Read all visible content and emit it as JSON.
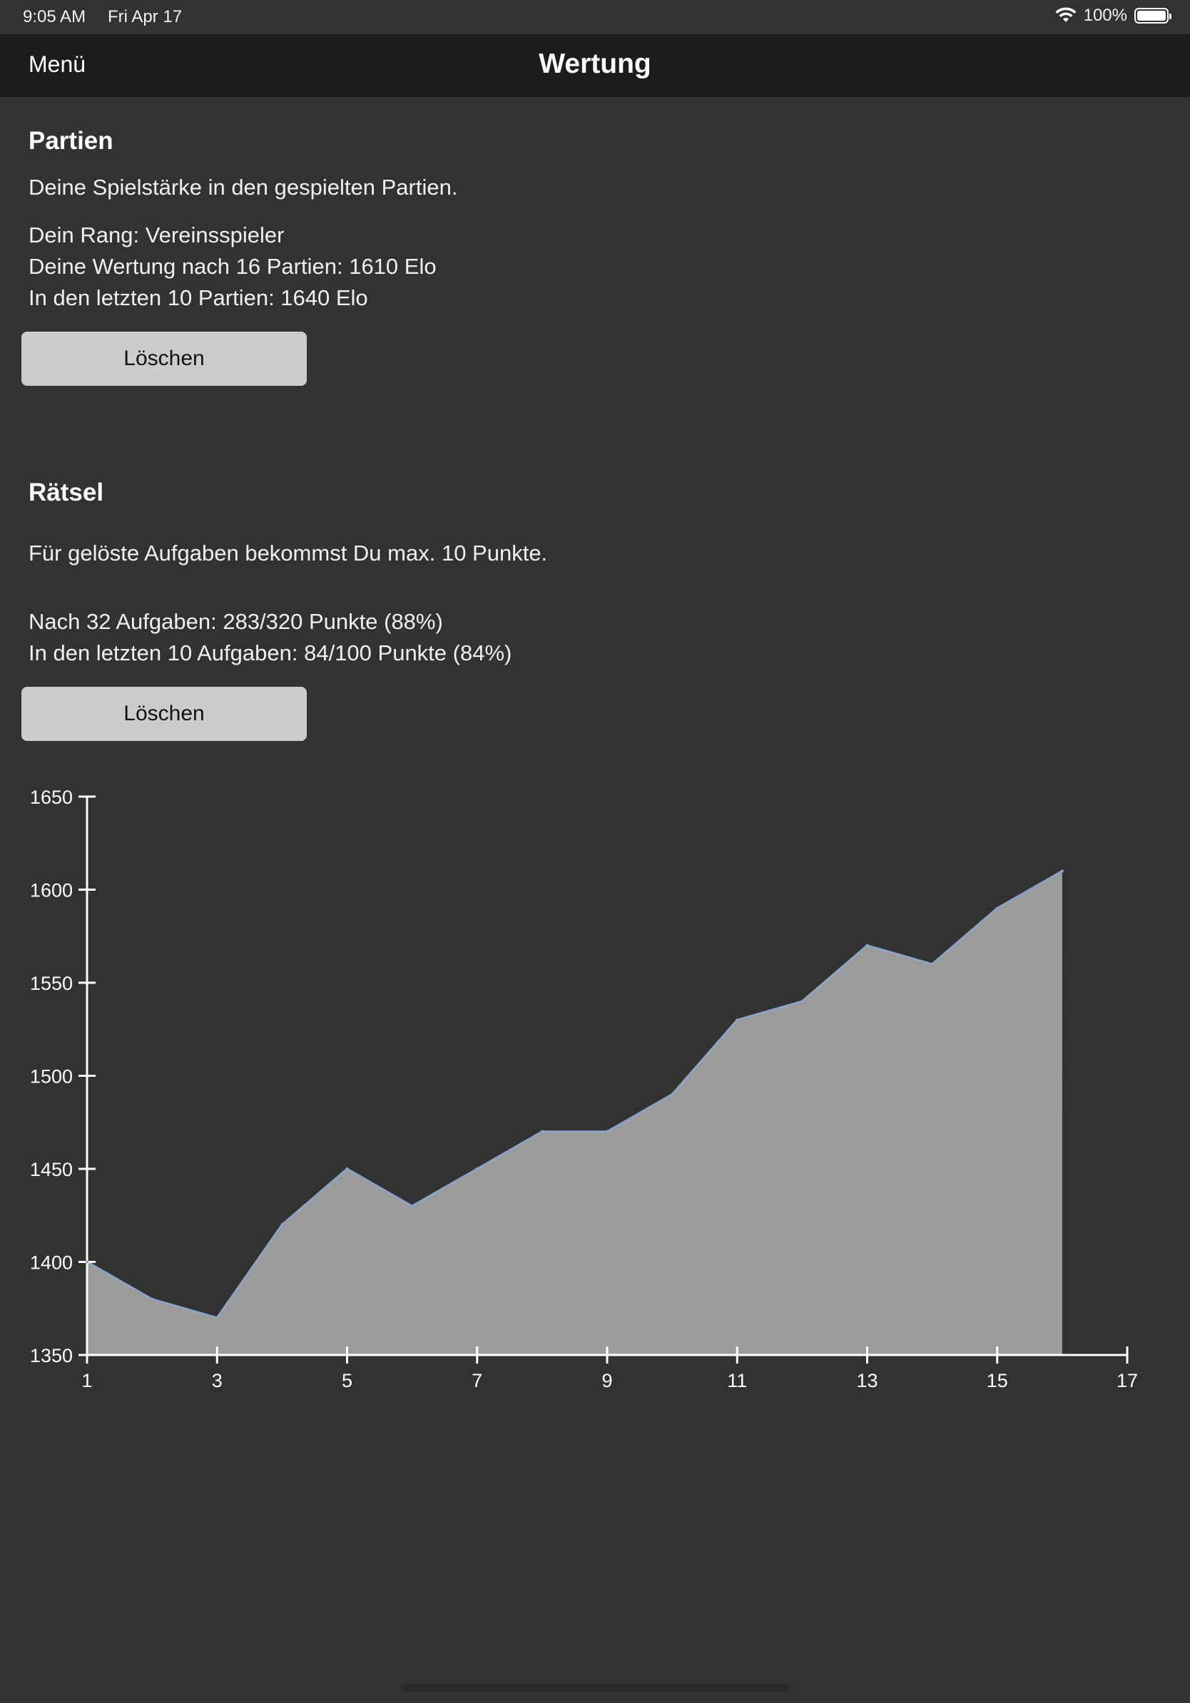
{
  "status": {
    "time": "9:05 AM",
    "date": "Fri Apr 17",
    "battery": "100%",
    "icons": [
      "wifi-icon",
      "battery-icon"
    ]
  },
  "nav": {
    "menu_label": "Menü",
    "title": "Wertung"
  },
  "games": {
    "title": "Partien",
    "description": "Deine Spielstärke in den gespielten Partien.",
    "rank": "Dein Rang: Vereinsspieler",
    "rating": "Deine Wertung nach 16 Partien: 1610 Elo",
    "recent": "In den letzten 10 Partien: 1640 Elo",
    "delete_label": "Löschen"
  },
  "puzzles": {
    "title": "Rätsel",
    "description": "Für gelöste Aufgaben bekommst Du max. 10 Punkte.",
    "total": "Nach 32 Aufgaben: 283/320 Punkte (88%)",
    "recent": "In den letzten 10 Aufgaben: 84/100 Punkte (84%)",
    "delete_label": "Löschen"
  },
  "chart_data": {
    "type": "area",
    "x": [
      1,
      2,
      3,
      4,
      5,
      6,
      7,
      8,
      9,
      10,
      11,
      12,
      13,
      14,
      15,
      16
    ],
    "values": [
      1400,
      1380,
      1370,
      1420,
      1450,
      1430,
      1450,
      1470,
      1470,
      1490,
      1530,
      1540,
      1570,
      1560,
      1590,
      1610
    ],
    "xlim": [
      1,
      17
    ],
    "ylim": [
      1350,
      1650
    ],
    "xticks": [
      1,
      3,
      5,
      7,
      9,
      11,
      13,
      15,
      17
    ],
    "yticks": [
      1350,
      1400,
      1450,
      1500,
      1550,
      1600,
      1650
    ],
    "grid": false,
    "colors": {
      "fill": "#9b9b9b",
      "line": "#8fa4c4",
      "axis": "#ffffff"
    }
  }
}
